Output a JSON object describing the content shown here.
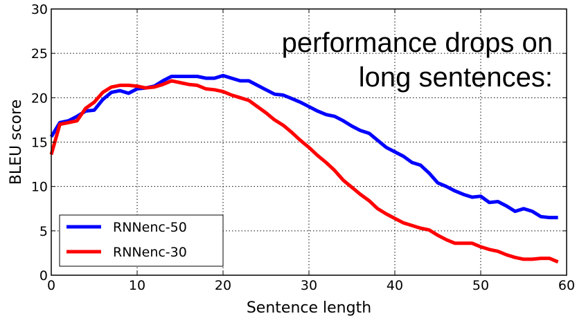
{
  "chart_data": {
    "type": "line",
    "xlabel": "Sentence length",
    "ylabel": "BLEU score",
    "xlim": [
      0,
      60
    ],
    "ylim": [
      0,
      30
    ],
    "xticks": [
      0,
      10,
      20,
      30,
      40,
      50,
      60
    ],
    "yticks": [
      0,
      5,
      10,
      15,
      20,
      25,
      30
    ],
    "grid": true,
    "legend_position": "lower-left",
    "annotation": [
      "performance drops on",
      "long sentences:"
    ],
    "series": [
      {
        "name": "RNNenc-50",
        "color": "#0000ff",
        "x": [
          0,
          1,
          2,
          3,
          4,
          5,
          6,
          7,
          8,
          9,
          10,
          11,
          12,
          13,
          14,
          15,
          16,
          17,
          18,
          19,
          20,
          21,
          22,
          23,
          24,
          25,
          26,
          27,
          28,
          29,
          30,
          31,
          32,
          33,
          34,
          35,
          36,
          37,
          38,
          39,
          40,
          41,
          42,
          43,
          44,
          45,
          46,
          47,
          48,
          49,
          50,
          51,
          52,
          53,
          54,
          55,
          56,
          57,
          58,
          59
        ],
        "y": [
          15.6,
          17.2,
          17.4,
          17.9,
          18.5,
          18.6,
          19.8,
          20.6,
          20.8,
          20.5,
          21.0,
          21.1,
          21.3,
          21.9,
          22.4,
          22.4,
          22.4,
          22.4,
          22.2,
          22.2,
          22.5,
          22.2,
          21.9,
          21.9,
          21.4,
          20.9,
          20.4,
          20.3,
          19.9,
          19.5,
          19.0,
          18.5,
          18.1,
          17.9,
          17.4,
          16.8,
          16.3,
          16.0,
          15.2,
          14.4,
          13.9,
          13.4,
          12.7,
          12.4,
          11.5,
          10.4,
          10.0,
          9.5,
          9.1,
          8.8,
          8.9,
          8.2,
          8.3,
          7.8,
          7.2,
          7.5,
          7.2,
          6.6,
          6.5,
          6.5
        ]
      },
      {
        "name": "RNNenc-30",
        "color": "#ff0000",
        "x": [
          0,
          1,
          2,
          3,
          4,
          5,
          6,
          7,
          8,
          9,
          10,
          11,
          12,
          13,
          14,
          15,
          16,
          17,
          18,
          19,
          20,
          21,
          22,
          23,
          24,
          25,
          26,
          27,
          28,
          29,
          30,
          31,
          32,
          33,
          34,
          35,
          36,
          37,
          38,
          39,
          40,
          41,
          42,
          43,
          44,
          45,
          46,
          47,
          48,
          49,
          50,
          51,
          52,
          53,
          54,
          55,
          56,
          57,
          58,
          59
        ],
        "y": [
          13.6,
          17.0,
          17.2,
          17.4,
          18.8,
          19.5,
          20.6,
          21.2,
          21.4,
          21.4,
          21.3,
          21.1,
          21.2,
          21.5,
          21.9,
          21.7,
          21.5,
          21.4,
          21.0,
          20.9,
          20.7,
          20.3,
          20.0,
          19.7,
          19.0,
          18.3,
          17.5,
          16.9,
          16.1,
          15.2,
          14.4,
          13.5,
          12.7,
          11.8,
          10.7,
          9.9,
          9.1,
          8.4,
          7.5,
          6.9,
          6.4,
          5.9,
          5.6,
          5.3,
          5.1,
          4.5,
          4.0,
          3.6,
          3.6,
          3.6,
          3.2,
          2.9,
          2.7,
          2.3,
          2.0,
          1.8,
          1.8,
          1.9,
          1.9,
          1.5
        ]
      }
    ]
  }
}
